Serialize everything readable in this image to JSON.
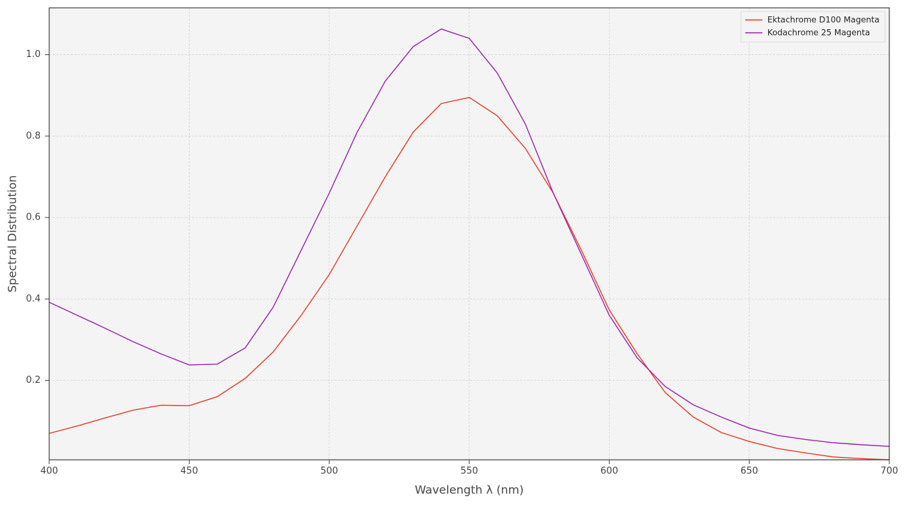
{
  "chart_data": {
    "type": "line",
    "x_label": "Wavelength λ (nm)",
    "y_label": "Spectral Distribution",
    "x": [
      400,
      410,
      420,
      430,
      440,
      450,
      460,
      470,
      480,
      490,
      500,
      510,
      520,
      530,
      540,
      550,
      560,
      570,
      580,
      590,
      600,
      610,
      620,
      630,
      640,
      650,
      660,
      670,
      680,
      690,
      700
    ],
    "series": [
      {
        "name": "Ektachrome D100 Magenta",
        "color": "#e8402a",
        "values": [
          0.07,
          0.088,
          0.108,
          0.127,
          0.139,
          0.138,
          0.16,
          0.205,
          0.27,
          0.36,
          0.46,
          0.58,
          0.7,
          0.81,
          0.88,
          0.895,
          0.85,
          0.77,
          0.66,
          0.52,
          0.373,
          0.265,
          0.17,
          0.11,
          0.072,
          0.05,
          0.033,
          0.022,
          0.012,
          0.008,
          0.005
        ]
      },
      {
        "name": "Kodachrome 25 Magenta",
        "color": "#9b27af",
        "values": [
          0.392,
          0.36,
          0.328,
          0.295,
          0.265,
          0.238,
          0.24,
          0.28,
          0.38,
          0.52,
          0.66,
          0.81,
          0.935,
          1.02,
          1.063,
          1.04,
          0.955,
          0.83,
          0.66,
          0.51,
          0.36,
          0.255,
          0.185,
          0.14,
          0.11,
          0.083,
          0.065,
          0.055,
          0.047,
          0.042,
          0.038
        ]
      }
    ],
    "xlim": [
      400,
      700
    ],
    "ylim": [
      0.005,
      1.115
    ],
    "xticks": [
      400,
      450,
      500,
      550,
      600,
      650,
      700
    ],
    "yticks": [
      0.2,
      0.4,
      0.6,
      0.8,
      {
        "value": 1.0,
        "label": "1.0"
      }
    ],
    "grid": true,
    "legend": "upper right"
  }
}
